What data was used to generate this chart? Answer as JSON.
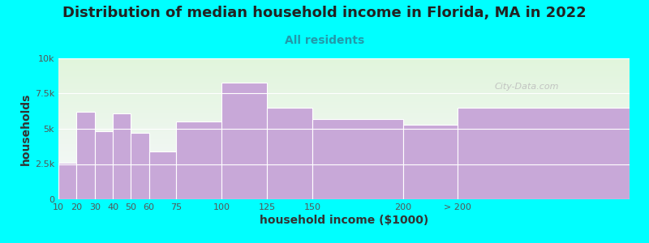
{
  "title": "Distribution of median household income in Florida, MA in 2022",
  "subtitle": "All residents",
  "xlabel": "household income ($1000)",
  "ylabel": "households",
  "categories": [
    "10",
    "20",
    "30",
    "40",
    "50",
    "60",
    "75",
    "100",
    "125",
    "150",
    "200",
    "> 200"
  ],
  "values": [
    2600,
    6200,
    4800,
    6100,
    4700,
    3400,
    5500,
    8300,
    6500,
    5700,
    5300,
    6500
  ],
  "bar_color": "#C8A8D8",
  "bar_edge_color": "#ffffff",
  "background_color": "#00FFFF",
  "yticks": [
    0,
    2500,
    5000,
    7500,
    10000
  ],
  "ytick_labels": [
    "0",
    "2.5k",
    "5k",
    "7.5k",
    "10k"
  ],
  "ylim": [
    0,
    10000
  ],
  "title_fontsize": 13,
  "subtitle_fontsize": 10,
  "axis_label_fontsize": 10,
  "watermark": "City-Data.com",
  "left_edges": [
    10,
    20,
    30,
    40,
    50,
    60,
    75,
    100,
    125,
    150,
    200,
    230
  ],
  "widths": [
    10,
    10,
    10,
    10,
    10,
    15,
    25,
    25,
    25,
    50,
    30,
    95
  ],
  "xlim": [
    10,
    325
  ]
}
